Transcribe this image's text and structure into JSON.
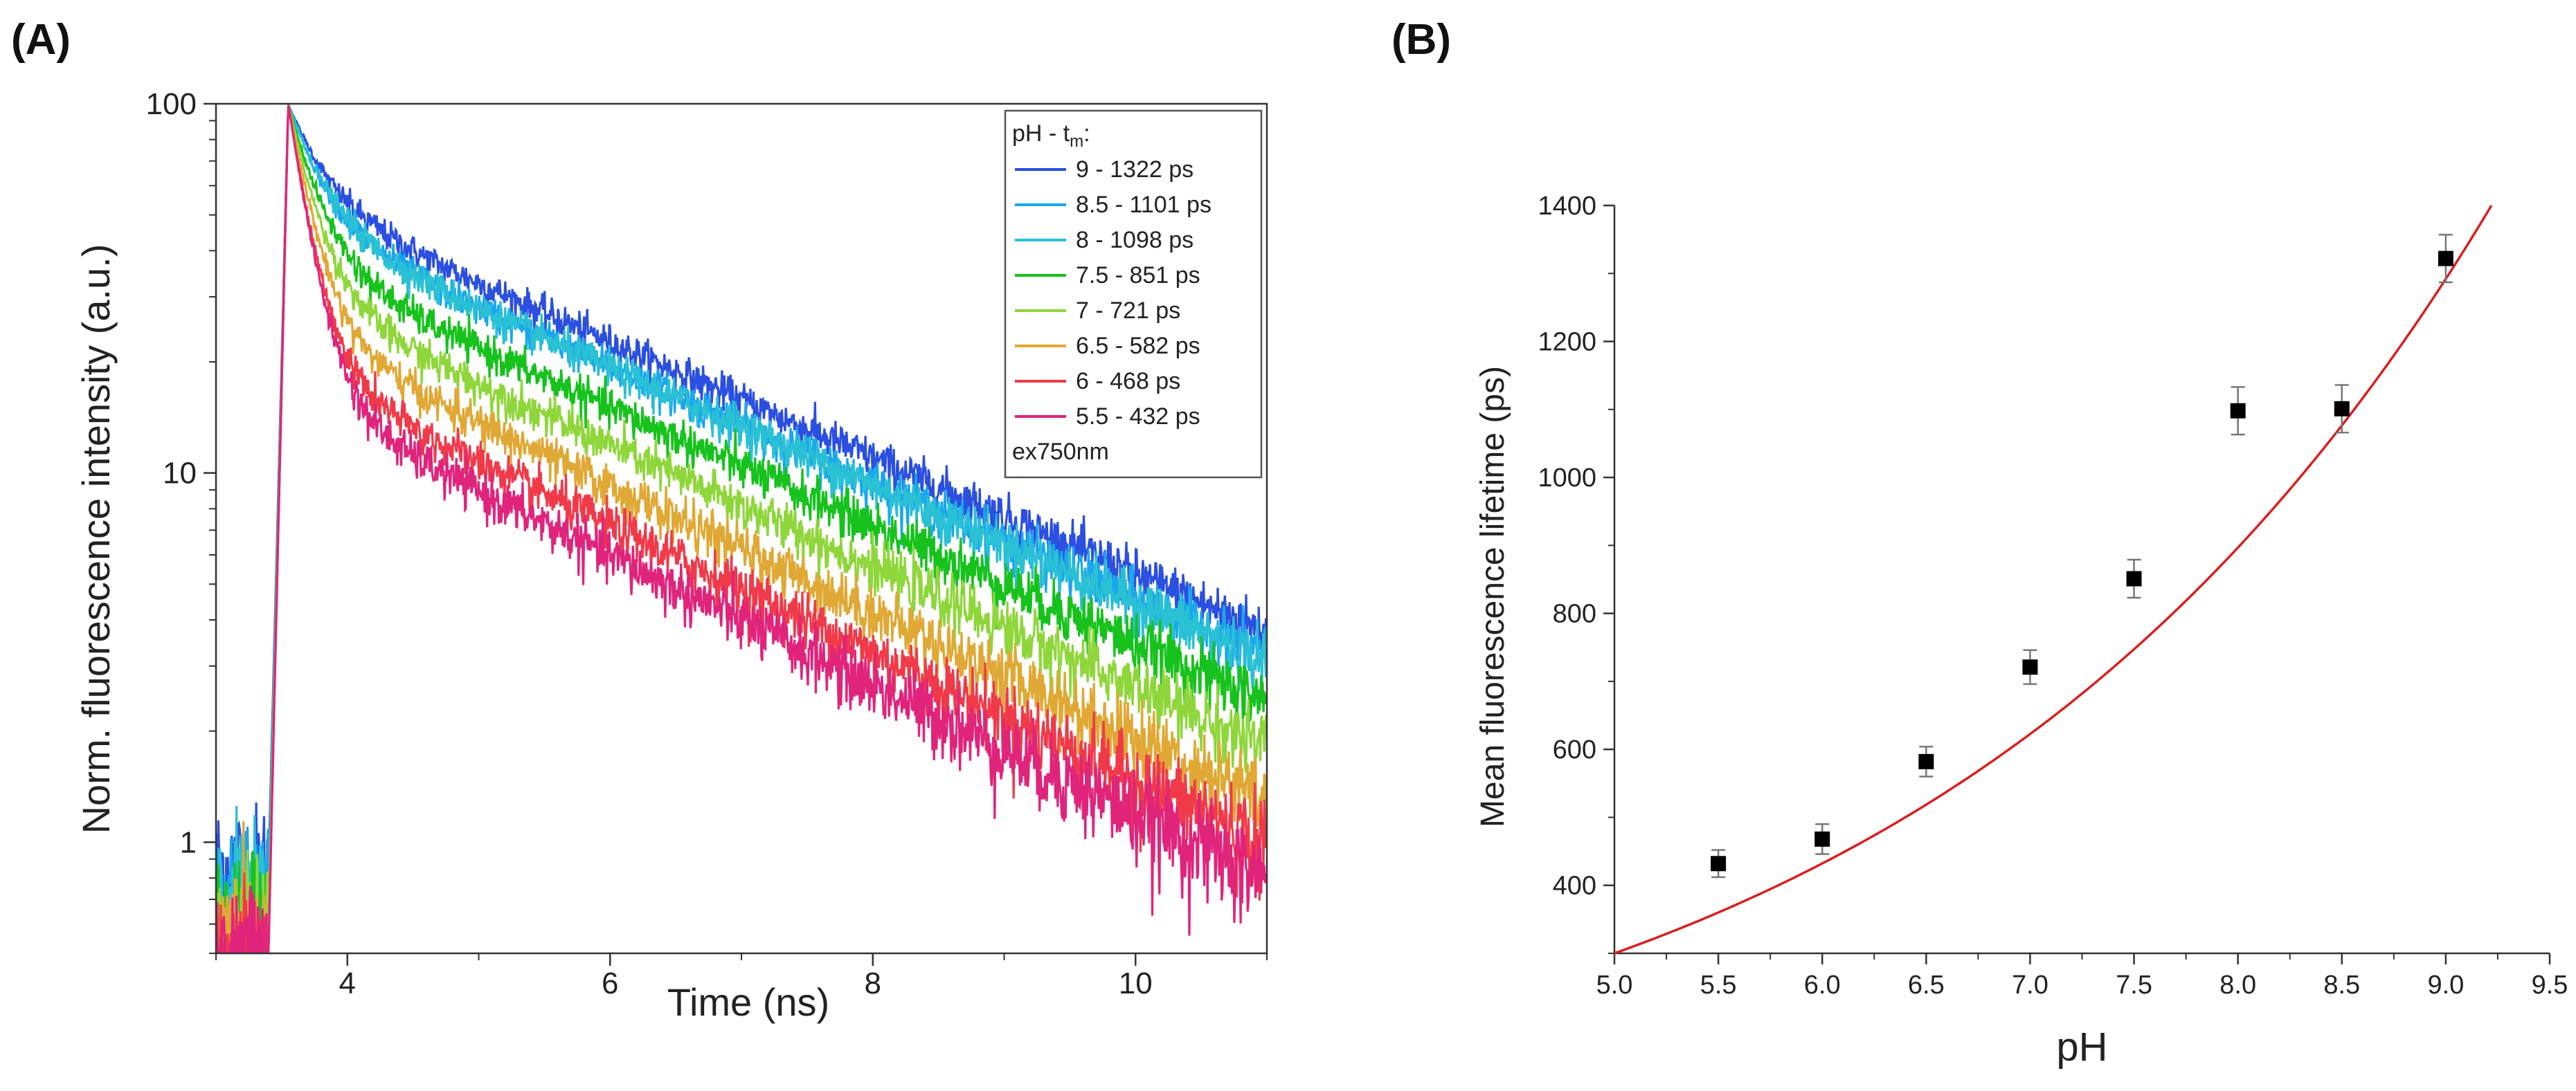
{
  "panels": {
    "a_label": "(A)",
    "b_label": "(B)"
  },
  "chart_data": [
    {
      "type": "line",
      "panel": "A",
      "xlabel": "Time (ns)",
      "ylabel": "Norm. fluorescence intensity (a.u.)",
      "xlim": [
        3,
        11
      ],
      "ylim": [
        0.5,
        100
      ],
      "yscale": "log",
      "xticks": [
        4,
        6,
        8,
        10
      ],
      "yticks": [
        1,
        10,
        100
      ],
      "xtick_labels": [
        "4",
        "6",
        "8",
        "10"
      ],
      "ytick_labels": [
        "1",
        "10",
        "100"
      ],
      "legend": {
        "title_main": "pH - t",
        "title_sub": "m",
        "title_end": ":",
        "note": "ex750nm",
        "position": "top-right"
      },
      "series": [
        {
          "name": "9 - 1322 ps",
          "color": "#2b4fe0",
          "rise_peak_time": 3.55,
          "fast_amp": 0.45,
          "fast_tau": 0.25,
          "slow_tau": 3.75,
          "end_value": 3.7,
          "pre_level": 0.85
        },
        {
          "name": "8.5 - 1101 ps",
          "color": "#1aa7ec",
          "rise_peak_time": 3.55,
          "fast_amp": 0.53,
          "fast_tau": 0.25,
          "slow_tau": 3.6,
          "end_value": 3.2,
          "pre_level": 0.75
        },
        {
          "name": "8 - 1098 ps",
          "color": "#2ac1d4",
          "rise_peak_time": 3.55,
          "fast_amp": 0.53,
          "fast_tau": 0.25,
          "slow_tau": 3.6,
          "end_value": 3.1,
          "pre_level": 0.72
        },
        {
          "name": "7.5 - 851 ps",
          "color": "#17c21d",
          "rise_peak_time": 3.55,
          "fast_amp": 0.63,
          "fast_tau": 0.22,
          "slow_tau": 3.7,
          "end_value": 2.4,
          "pre_level": 0.62
        },
        {
          "name": "7 - 721 ps",
          "color": "#8fd63b",
          "rise_peak_time": 3.55,
          "fast_amp": 0.7,
          "fast_tau": 0.2,
          "slow_tau": 3.6,
          "end_value": 1.8,
          "pre_level": 0.58
        },
        {
          "name": "6.5 - 582 ps",
          "color": "#e0a834",
          "rise_peak_time": 3.55,
          "fast_amp": 0.76,
          "fast_tau": 0.18,
          "slow_tau": 3.3,
          "end_value": 1.3,
          "pre_level": 0.55
        },
        {
          "name": "6 - 468 ps",
          "color": "#f03a4a",
          "rise_peak_time": 3.55,
          "fast_amp": 0.81,
          "fast_tau": 0.16,
          "slow_tau": 3.2,
          "end_value": 1.0,
          "pre_level": 0.52
        },
        {
          "name": "5.5 - 432 ps",
          "color": "#e0247c",
          "rise_peak_time": 3.55,
          "fast_amp": 0.84,
          "fast_tau": 0.16,
          "slow_tau": 3.3,
          "end_value": 0.8,
          "pre_level": 0.5
        }
      ]
    },
    {
      "type": "scatter",
      "panel": "B",
      "xlabel": "pH",
      "ylabel": "Mean fluorescence lifetime (ps)",
      "xlim": [
        5.0,
        9.5
      ],
      "ylim": [
        300,
        1400
      ],
      "xticks": [
        5.0,
        5.5,
        6.0,
        6.5,
        7.0,
        7.5,
        8.0,
        8.5,
        9.0,
        9.5
      ],
      "yticks": [
        400,
        600,
        800,
        1000,
        1200,
        1400
      ],
      "xtick_labels": [
        "5.0",
        "5.5",
        "6.0",
        "6.5",
        "7.0",
        "7.5",
        "8.0",
        "8.5",
        "9.0",
        "9.5"
      ],
      "ytick_labels": [
        "400",
        "600",
        "800",
        "1000",
        "1200",
        "1400"
      ],
      "points": [
        {
          "x": 5.5,
          "y": 432,
          "err": 20
        },
        {
          "x": 6.0,
          "y": 468,
          "err": 22
        },
        {
          "x": 6.5,
          "y": 582,
          "err": 22
        },
        {
          "x": 7.0,
          "y": 721,
          "err": 25
        },
        {
          "x": 7.5,
          "y": 851,
          "err": 28
        },
        {
          "x": 8.0,
          "y": 1098,
          "err": 35
        },
        {
          "x": 8.5,
          "y": 1101,
          "err": 35
        },
        {
          "x": 9.0,
          "y": 1322,
          "err": 35
        }
      ],
      "fit": {
        "color": "#d62020",
        "x_range": [
          5.0,
          9.22
        ],
        "model": "exponential",
        "x_anchor": [
          5.0,
          9.22
        ],
        "y_anchor": [
          300,
          1400
        ]
      },
      "marker_color": "#000000",
      "errorbar_color": "#777777"
    }
  ]
}
